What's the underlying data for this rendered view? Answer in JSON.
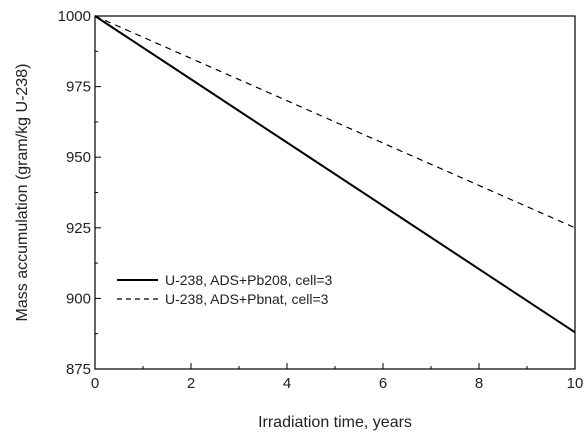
{
  "chart_data": {
    "type": "line",
    "title": "",
    "xlabel": "Irradiation time,  years",
    "ylabel": "Mass accumulation (gram/kg U-238)",
    "xlim": [
      0,
      10
    ],
    "ylim": [
      875,
      1000
    ],
    "xticks": [
      0,
      2,
      4,
      6,
      8,
      10
    ],
    "yticks": [
      875,
      900,
      925,
      950,
      975,
      1000
    ],
    "xtick_labels": [
      "0",
      "2",
      "4",
      "6",
      "8",
      "10"
    ],
    "ytick_labels": [
      "875",
      "900",
      "925",
      "950",
      "975",
      "1000"
    ],
    "grid": false,
    "legend_position": "lower-left",
    "series": [
      {
        "name": "U-238, ADS+Pb208, cell=3",
        "style": "solid",
        "color": "#000000",
        "x": [
          0,
          2,
          4,
          6,
          8,
          10
        ],
        "y": [
          1000,
          977.6,
          955.2,
          932.8,
          910.4,
          888
        ]
      },
      {
        "name": "U-238, ADS+Pbnat, cell=3",
        "style": "dashed",
        "color": "#000000",
        "x": [
          0,
          2,
          4,
          6,
          8,
          10
        ],
        "y": [
          1000,
          985,
          970,
          955,
          940,
          925
        ]
      }
    ]
  }
}
